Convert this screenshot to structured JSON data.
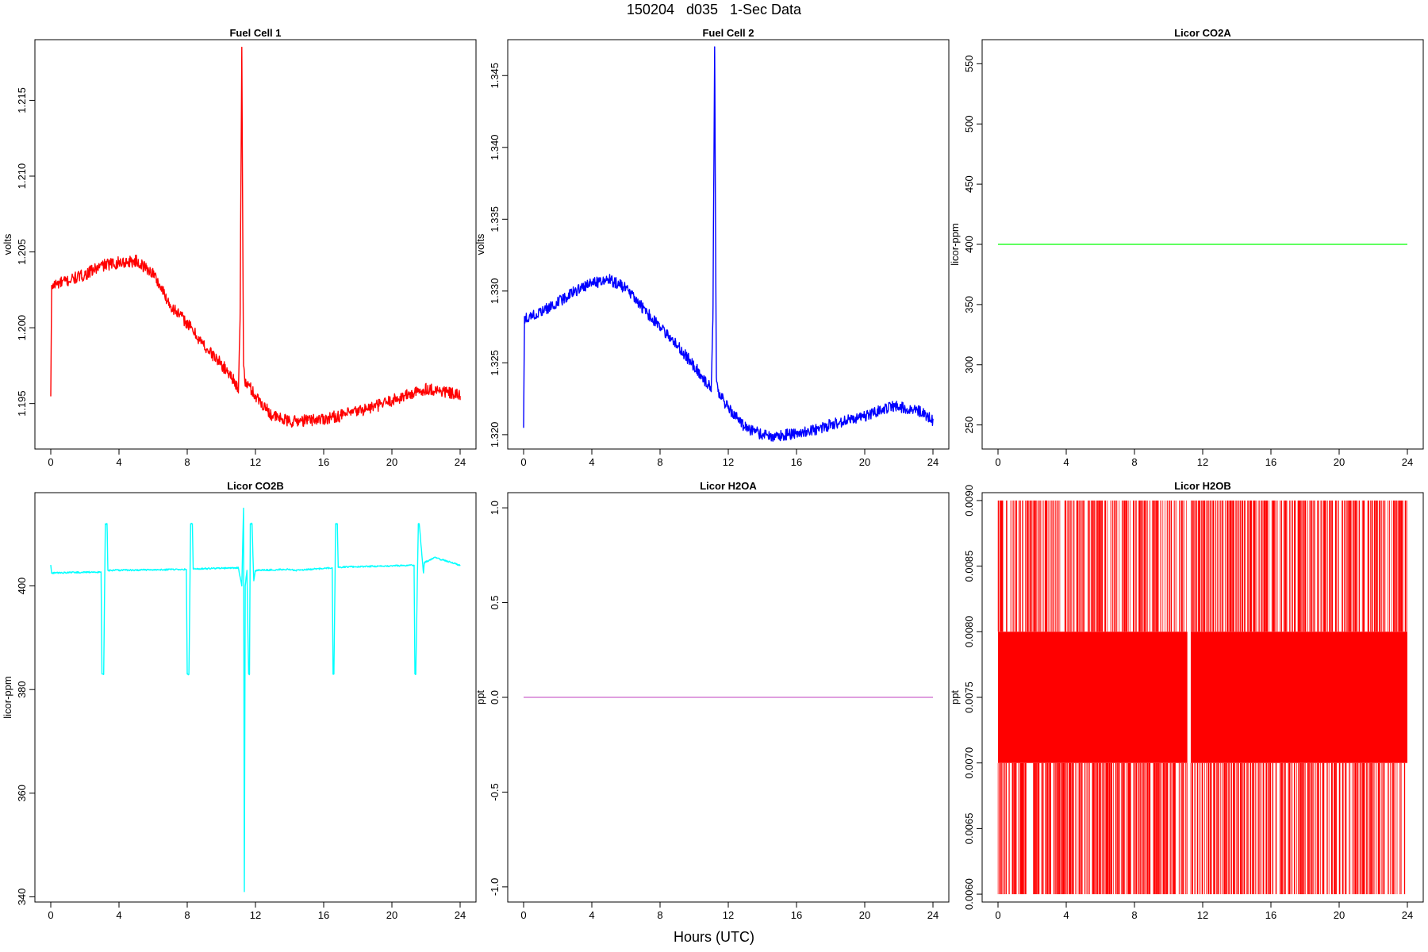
{
  "page": {
    "title": "150204   d035   1-Sec Data",
    "xlabel": "Hours (UTC)"
  },
  "chart_data": [
    {
      "type": "line",
      "title": "Fuel Cell 1",
      "ylabel": "volts",
      "color": "#ff0000",
      "xlim": [
        0,
        24
      ],
      "ylim": [
        1.192,
        1.219
      ],
      "xticks": [
        0,
        4,
        8,
        12,
        16,
        20,
        24
      ],
      "xtick_labels": [
        "0",
        "4",
        "8",
        "12",
        "16",
        "20",
        "24"
      ],
      "yticks": [
        1.195,
        1.2,
        1.205,
        1.21,
        1.215
      ],
      "ytick_labels": [
        "1.195",
        "1.200",
        "1.205",
        "1.210",
        "1.215"
      ],
      "x": [
        0,
        0.05,
        0.1,
        1,
        2,
        3,
        4,
        5,
        6,
        7,
        8,
        9,
        10,
        10.8,
        11.0,
        11.1,
        11.2,
        11.3,
        11.4,
        11.6,
        12,
        13,
        14,
        15,
        16,
        17,
        18,
        19,
        20,
        21,
        21.7,
        22,
        23,
        24
      ],
      "y": [
        1.1955,
        1.2025,
        1.2028,
        1.2031,
        1.2035,
        1.2041,
        1.2043,
        1.2044,
        1.2036,
        1.2015,
        1.2003,
        1.1988,
        1.1976,
        1.1965,
        1.1957,
        1.2005,
        1.2185,
        1.1975,
        1.1963,
        1.1962,
        1.1955,
        1.1942,
        1.1938,
        1.1939,
        1.194,
        1.1942,
        1.1945,
        1.1948,
        1.1952,
        1.1956,
        1.1958,
        1.196,
        1.1958,
        1.1955
      ],
      "noise": 0.0004
    },
    {
      "type": "line",
      "title": "Fuel Cell 2",
      "ylabel": "volts",
      "color": "#0000ff",
      "xlim": [
        0,
        24
      ],
      "ylim": [
        1.319,
        1.3475
      ],
      "xticks": [
        0,
        4,
        8,
        12,
        16,
        20,
        24
      ],
      "xtick_labels": [
        "0",
        "4",
        "8",
        "12",
        "16",
        "20",
        "24"
      ],
      "yticks": [
        1.32,
        1.325,
        1.33,
        1.335,
        1.34,
        1.345
      ],
      "ytick_labels": [
        "1.320",
        "1.325",
        "1.330",
        "1.335",
        "1.340",
        "1.345"
      ],
      "x": [
        0,
        0.05,
        0.1,
        1,
        2,
        3,
        4,
        5,
        6,
        7,
        8,
        9,
        10,
        10.8,
        11.0,
        11.1,
        11.2,
        11.3,
        11.4,
        11.6,
        12,
        13,
        14,
        15,
        16,
        17,
        18,
        19,
        20,
        21,
        21.7,
        22,
        23,
        24
      ],
      "y": [
        1.3205,
        1.3278,
        1.3282,
        1.3285,
        1.3292,
        1.33,
        1.3305,
        1.3308,
        1.3302,
        1.3288,
        1.3275,
        1.3262,
        1.3248,
        1.3235,
        1.3232,
        1.328,
        1.347,
        1.324,
        1.323,
        1.3226,
        1.3218,
        1.3205,
        1.32,
        1.3199,
        1.3201,
        1.3203,
        1.3207,
        1.321,
        1.3213,
        1.3217,
        1.322,
        1.3219,
        1.3218,
        1.321
      ],
      "noise": 0.0004
    },
    {
      "type": "line",
      "title": "Licor CO2A",
      "ylabel": "licor-ppm",
      "color": "#00ff00",
      "xlim": [
        0,
        24
      ],
      "ylim": [
        230,
        570
      ],
      "xticks": [
        0,
        4,
        8,
        12,
        16,
        20,
        24
      ],
      "xtick_labels": [
        "0",
        "4",
        "8",
        "12",
        "16",
        "20",
        "24"
      ],
      "yticks": [
        250,
        300,
        350,
        400,
        450,
        500,
        550
      ],
      "ytick_labels": [
        "250",
        "300",
        "350",
        "400",
        "450",
        "500",
        "550"
      ],
      "x": [
        0,
        24
      ],
      "y": [
        400,
        400
      ],
      "noise": 0
    },
    {
      "type": "line",
      "title": "Licor CO2B",
      "ylabel": "licor-ppm",
      "color": "#00ffff",
      "xlim": [
        0,
        24
      ],
      "ylim": [
        339,
        418
      ],
      "xticks": [
        0,
        4,
        8,
        12,
        16,
        20,
        24
      ],
      "xtick_labels": [
        "0",
        "4",
        "8",
        "12",
        "16",
        "20",
        "24"
      ],
      "yticks": [
        340,
        360,
        380,
        400
      ],
      "ytick_labels": [
        "340",
        "360",
        "380",
        "400"
      ],
      "x": [
        0,
        0.05,
        0.1,
        2.95,
        3.0,
        3.1,
        3.2,
        3.3,
        3.35,
        7.95,
        8.0,
        8.1,
        8.2,
        8.3,
        8.35,
        11.0,
        11.2,
        11.3,
        11.35,
        11.4,
        11.5,
        11.6,
        11.65,
        11.7,
        11.8,
        11.9,
        12.0,
        14.0,
        14.3,
        16.5,
        16.55,
        16.6,
        16.7,
        16.8,
        16.85,
        21.3,
        21.35,
        21.4,
        21.55,
        21.6,
        21.85,
        21.9,
        22.5,
        23.0,
        24.0
      ],
      "y": [
        404,
        402.5,
        402.5,
        402.7,
        383,
        383,
        412,
        412,
        403,
        403.2,
        383,
        383,
        412,
        412,
        403.3,
        403.5,
        400,
        415,
        341,
        400,
        403,
        383,
        383,
        412,
        412,
        401,
        403,
        403.2,
        403,
        403.5,
        383,
        383,
        412,
        412,
        403.6,
        404,
        383,
        383,
        412,
        412,
        402.5,
        404.5,
        405.5,
        405,
        404
      ],
      "noise": 0.15
    },
    {
      "type": "line",
      "title": "Licor H2OA",
      "ylabel": "ppt",
      "color": "#cc66cc",
      "xlim": [
        0,
        24
      ],
      "ylim": [
        -1.08,
        1.08
      ],
      "xticks": [
        0,
        4,
        8,
        12,
        16,
        20,
        24
      ],
      "xtick_labels": [
        "0",
        "4",
        "8",
        "12",
        "16",
        "20",
        "24"
      ],
      "yticks": [
        -1.0,
        -0.5,
        0.0,
        0.5,
        1.0
      ],
      "ytick_labels": [
        "-1.0",
        "-0.5",
        "0.0",
        "0.5",
        "1.0"
      ],
      "x": [
        0,
        24
      ],
      "y": [
        0,
        0
      ],
      "noise": 0
    },
    {
      "type": "line",
      "title": "Licor H2OB",
      "ylabel": "ppt",
      "color": "#ff0000",
      "xlim": [
        0,
        24
      ],
      "ylim": [
        0.00594,
        0.00906
      ],
      "xticks": [
        0,
        4,
        8,
        12,
        16,
        20,
        24
      ],
      "xtick_labels": [
        "0",
        "4",
        "8",
        "12",
        "16",
        "20",
        "24"
      ],
      "yticks": [
        0.006,
        0.0065,
        0.007,
        0.0075,
        0.008,
        0.0085,
        0.009
      ],
      "ytick_labels": [
        "0.0060",
        "0.0065",
        "0.0070",
        "0.0075",
        "0.0080",
        "0.0085",
        "0.0090"
      ],
      "levels": [
        0.006,
        0.007,
        0.008,
        0.009
      ],
      "band": [
        0.007,
        0.008
      ],
      "gap": [
        11.1,
        11.3
      ],
      "x": [
        0,
        24
      ],
      "y": [
        0.007,
        0.008
      ],
      "noise": 0
    }
  ]
}
